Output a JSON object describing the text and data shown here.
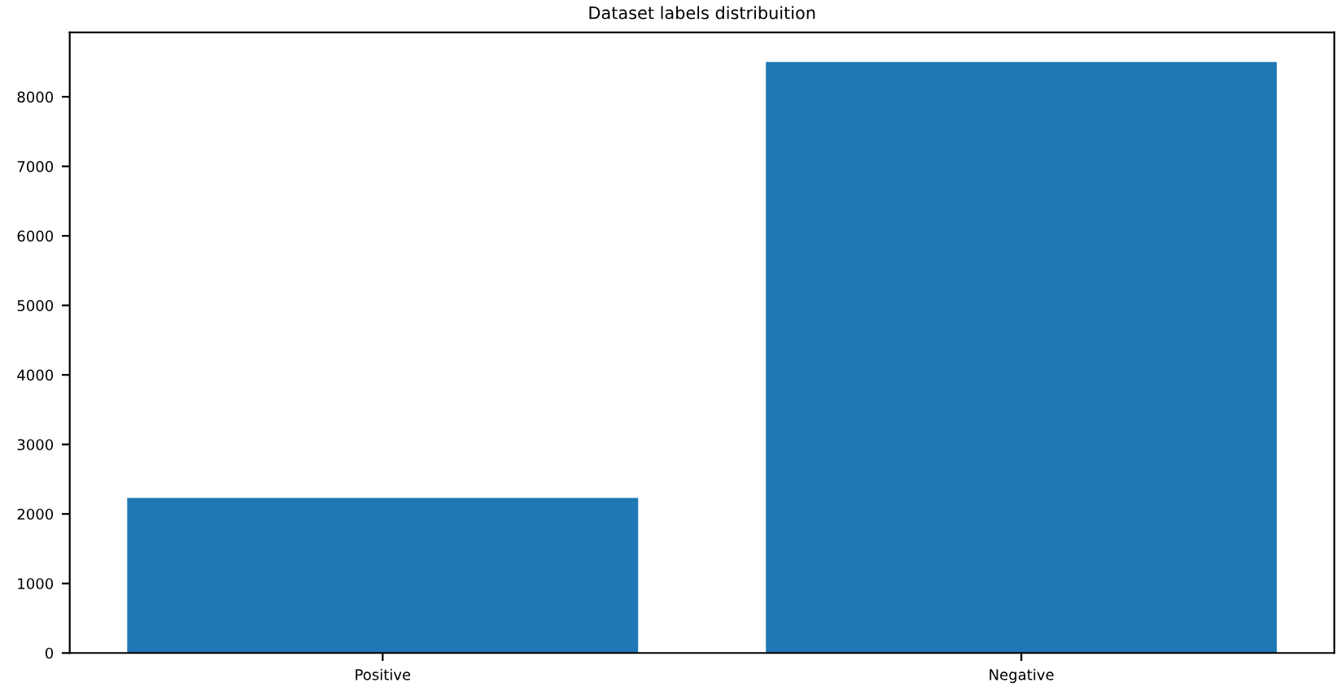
{
  "chart_data": {
    "type": "bar",
    "title": "Dataset labels distribuition",
    "categories": [
      "Positive",
      "Negative"
    ],
    "values": [
      2230,
      8500
    ],
    "color": "#1f77b4",
    "ylim": [
      0,
      8925
    ],
    "yticks": [
      0,
      1000,
      2000,
      3000,
      4000,
      5000,
      6000,
      7000,
      8000
    ]
  }
}
